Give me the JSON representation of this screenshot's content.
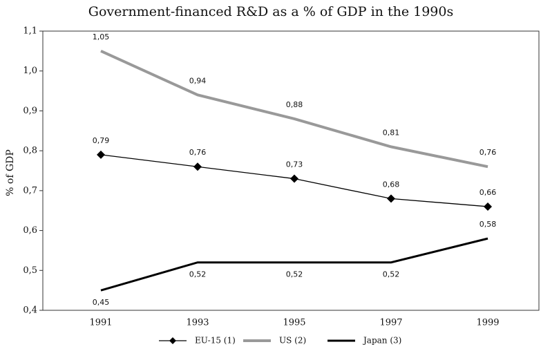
{
  "chart_data": {
    "type": "line",
    "title": "Government-financed R&D as a % of GDP in the 1990s",
    "y_label": "% of GDP",
    "categories": [
      "1991",
      "1993",
      "1995",
      "1997",
      "1999"
    ],
    "series": [
      {
        "name": "EU-15 (1)",
        "color": "#000000",
        "marker": "diamond",
        "values": [
          0.79,
          0.76,
          0.73,
          0.68,
          0.66
        ],
        "value_labels": [
          "0,79",
          "0,76",
          "0,73",
          "0,68",
          "0,66"
        ]
      },
      {
        "name": "US (2)",
        "color": "#999999",
        "values": [
          1.05,
          0.94,
          0.88,
          0.81,
          0.76
        ],
        "value_labels": [
          "1,05",
          "0,94",
          "0,88",
          "0,81",
          "0,76"
        ]
      },
      {
        "name": "Japan (3)",
        "color": "#000000",
        "values": [
          0.45,
          0.52,
          0.52,
          0.52,
          0.58
        ],
        "value_labels": [
          "0,45",
          "0,52",
          "0,52",
          "0,52",
          "0,58"
        ]
      }
    ],
    "ylim": [
      0.4,
      1.1
    ],
    "yticks": [
      {
        "value": 0.4,
        "label": "0,4"
      },
      {
        "value": 0.5,
        "label": "0,5"
      },
      {
        "value": 0.6,
        "label": "0,6"
      },
      {
        "value": 0.7,
        "label": "0,7"
      },
      {
        "value": 0.8,
        "label": "0,8"
      },
      {
        "value": 0.9,
        "label": "0,9"
      },
      {
        "value": 1.0,
        "label": "1,0"
      },
      {
        "value": 1.1,
        "label": "1,1"
      }
    ],
    "legend": "bottom"
  }
}
